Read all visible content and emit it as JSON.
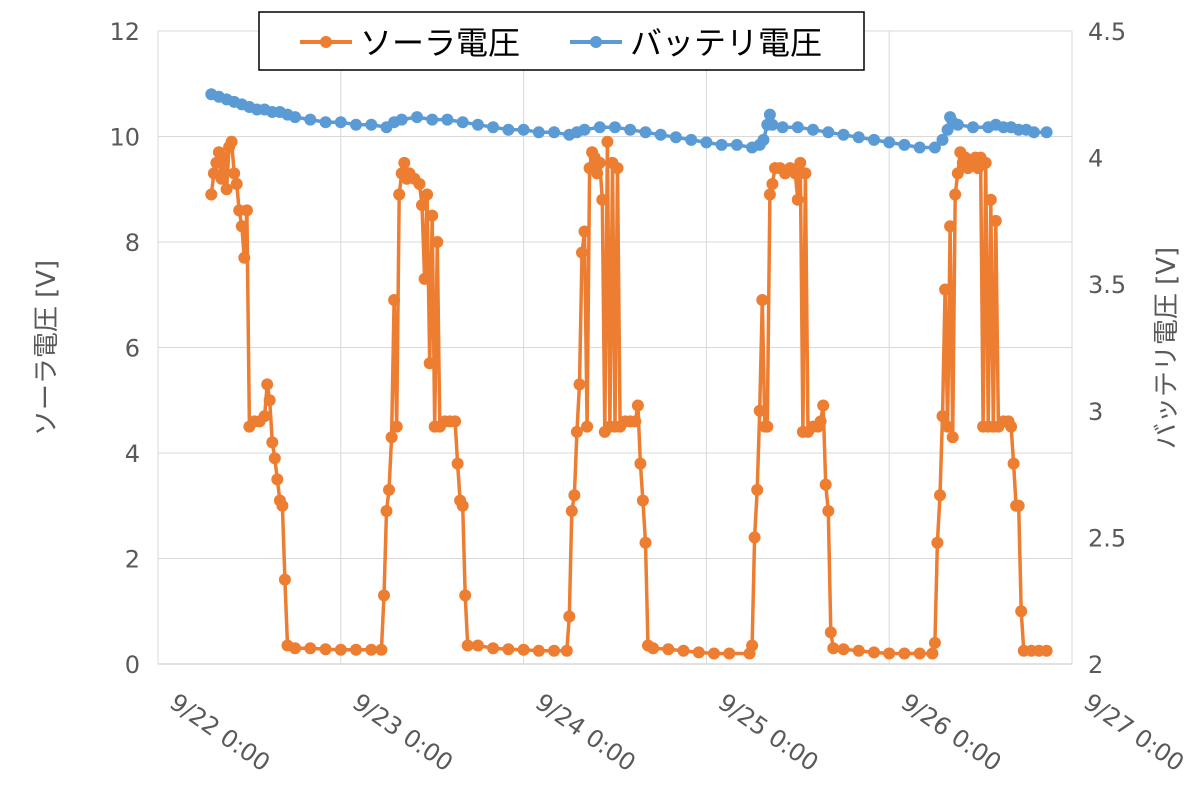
{
  "chart_data": {
    "type": "line",
    "legend": {
      "placement": "top",
      "entries": [
        {
          "label": "ソーラ電圧",
          "color": "#ED7D31"
        },
        {
          "label": "バッテリ電圧",
          "color": "#5B9BD5"
        }
      ]
    },
    "x_axis": {
      "ticks": [
        "9/22 0:00",
        "9/23 0:00",
        "9/24 0:00",
        "9/25 0:00",
        "9/26 0:00",
        "9/27 0:00"
      ],
      "range": [
        "9/22 0:00",
        "9/27 0:00"
      ],
      "unit": "day"
    },
    "y_left": {
      "label": "ソーラ電圧 [V]",
      "ticks": [
        "0",
        "2",
        "4",
        "6",
        "8",
        "10",
        "12"
      ],
      "range": [
        0,
        12
      ]
    },
    "y_right": {
      "label": "バッテリ電圧 [V]",
      "ticks": [
        "2",
        "2.5",
        "3",
        "3.5",
        "4",
        "4.5"
      ],
      "range": [
        2,
        4.5
      ]
    },
    "grid": "horizontal",
    "series": [
      {
        "name": "ソーラ電圧",
        "axis": "left",
        "color": "#ED7D31",
        "points": [
          [
            "9/22 7:00",
            8.9
          ],
          [
            "9/22 7:20",
            9.3
          ],
          [
            "9/22 7:40",
            9.5
          ],
          [
            "9/22 8:00",
            9.7
          ],
          [
            "9/22 8:20",
            9.2
          ],
          [
            "9/22 8:40",
            9.6
          ],
          [
            "9/22 9:00",
            9.0
          ],
          [
            "9/22 9:20",
            9.8
          ],
          [
            "9/22 9:40",
            9.9
          ],
          [
            "9/22 10:00",
            9.3
          ],
          [
            "9/22 10:20",
            9.1
          ],
          [
            "9/22 10:40",
            8.6
          ],
          [
            "9/22 11:00",
            8.3
          ],
          [
            "9/22 11:20",
            7.7
          ],
          [
            "9/22 11:40",
            8.6
          ],
          [
            "9/22 12:00",
            4.5
          ],
          [
            "9/22 12:40",
            4.6
          ],
          [
            "9/22 13:20",
            4.6
          ],
          [
            "9/22 14:00",
            4.7
          ],
          [
            "9/22 14:20",
            5.3
          ],
          [
            "9/22 14:40",
            5.0
          ],
          [
            "9/22 15:00",
            4.2
          ],
          [
            "9/22 15:20",
            3.9
          ],
          [
            "9/22 15:40",
            3.5
          ],
          [
            "9/22 16:00",
            3.1
          ],
          [
            "9/22 16:20",
            3.0
          ],
          [
            "9/22 16:40",
            1.6
          ],
          [
            "9/22 17:00",
            0.35
          ],
          [
            "9/22 18:00",
            0.3
          ],
          [
            "9/22 20:00",
            0.3
          ],
          [
            "9/22 22:00",
            0.28
          ],
          [
            "9/23 0:00",
            0.27
          ],
          [
            "9/23 2:00",
            0.27
          ],
          [
            "9/23 4:00",
            0.27
          ],
          [
            "9/23 5:20",
            0.27
          ],
          [
            "9/23 5:40",
            1.3
          ],
          [
            "9/23 6:00",
            2.9
          ],
          [
            "9/23 6:20",
            3.3
          ],
          [
            "9/23 6:40",
            4.3
          ],
          [
            "9/23 7:00",
            6.9
          ],
          [
            "9/23 7:20",
            4.5
          ],
          [
            "9/23 7:40",
            8.9
          ],
          [
            "9/23 8:00",
            9.3
          ],
          [
            "9/23 8:20",
            9.5
          ],
          [
            "9/23 8:40",
            9.2
          ],
          [
            "9/23 9:00",
            9.3
          ],
          [
            "9/23 9:40",
            9.2
          ],
          [
            "9/23 10:20",
            9.1
          ],
          [
            "9/23 10:40",
            8.7
          ],
          [
            "9/23 11:00",
            7.3
          ],
          [
            "9/23 11:20",
            8.9
          ],
          [
            "9/23 11:40",
            5.7
          ],
          [
            "9/23 12:00",
            8.5
          ],
          [
            "9/23 12:20",
            4.5
          ],
          [
            "9/23 12:40",
            8.0
          ],
          [
            "9/23 13:00",
            4.5
          ],
          [
            "9/23 13:40",
            4.6
          ],
          [
            "9/23 14:20",
            4.6
          ],
          [
            "9/23 15:00",
            4.6
          ],
          [
            "9/23 15:20",
            3.8
          ],
          [
            "9/23 15:40",
            3.1
          ],
          [
            "9/23 16:00",
            3.0
          ],
          [
            "9/23 16:20",
            1.3
          ],
          [
            "9/23 16:40",
            0.35
          ],
          [
            "9/23 18:00",
            0.35
          ],
          [
            "9/23 20:00",
            0.3
          ],
          [
            "9/23 22:00",
            0.28
          ],
          [
            "9/24 0:00",
            0.27
          ],
          [
            "9/24 2:00",
            0.25
          ],
          [
            "9/24 4:00",
            0.25
          ],
          [
            "9/24 5:40",
            0.25
          ],
          [
            "9/24 6:00",
            0.9
          ],
          [
            "9/24 6:20",
            2.9
          ],
          [
            "9/24 6:40",
            3.2
          ],
          [
            "9/24 7:00",
            4.4
          ],
          [
            "9/24 7:20",
            5.3
          ],
          [
            "9/24 7:40",
            7.8
          ],
          [
            "9/24 8:00",
            8.2
          ],
          [
            "9/24 8:20",
            4.5
          ],
          [
            "9/24 8:40",
            9.4
          ],
          [
            "9/24 9:00",
            9.7
          ],
          [
            "9/24 9:20",
            9.6
          ],
          [
            "9/24 9:40",
            9.3
          ],
          [
            "9/24 10:00",
            9.5
          ],
          [
            "9/24 10:20",
            8.8
          ],
          [
            "9/24 10:40",
            4.4
          ],
          [
            "9/24 11:00",
            9.9
          ],
          [
            "9/24 11:20",
            4.5
          ],
          [
            "9/24 11:40",
            9.5
          ],
          [
            "9/24 12:00",
            4.5
          ],
          [
            "9/24 12:20",
            9.4
          ],
          [
            "9/24 12:40",
            4.5
          ],
          [
            "9/24 13:20",
            4.6
          ],
          [
            "9/24 14:00",
            4.6
          ],
          [
            "9/24 14:40",
            4.6
          ],
          [
            "9/24 15:00",
            4.9
          ],
          [
            "9/24 15:20",
            3.8
          ],
          [
            "9/24 15:40",
            3.1
          ],
          [
            "9/24 16:00",
            2.3
          ],
          [
            "9/24 16:20",
            0.35
          ],
          [
            "9/24 17:00",
            0.3
          ],
          [
            "9/24 19:00",
            0.28
          ],
          [
            "9/24 21:00",
            0.25
          ],
          [
            "9/24 23:00",
            0.22
          ],
          [
            "9/25 1:00",
            0.2
          ],
          [
            "9/25 3:00",
            0.2
          ],
          [
            "9/25 5:40",
            0.2
          ],
          [
            "9/25 6:00",
            0.35
          ],
          [
            "9/25 6:20",
            2.4
          ],
          [
            "9/25 6:40",
            3.3
          ],
          [
            "9/25 7:00",
            4.8
          ],
          [
            "9/25 7:20",
            6.9
          ],
          [
            "9/25 7:40",
            4.5
          ],
          [
            "9/25 8:00",
            4.5
          ],
          [
            "9/25 8:20",
            8.9
          ],
          [
            "9/25 8:40",
            9.1
          ],
          [
            "9/25 9:00",
            9.4
          ],
          [
            "9/25 9:40",
            9.4
          ],
          [
            "9/25 10:20",
            9.3
          ],
          [
            "9/25 11:00",
            9.4
          ],
          [
            "9/25 11:40",
            9.3
          ],
          [
            "9/25 12:00",
            8.8
          ],
          [
            "9/25 12:20",
            9.5
          ],
          [
            "9/25 12:40",
            4.4
          ],
          [
            "9/25 13:00",
            9.3
          ],
          [
            "9/25 13:20",
            4.4
          ],
          [
            "9/25 14:00",
            4.5
          ],
          [
            "9/25 14:40",
            4.5
          ],
          [
            "9/25 15:00",
            4.6
          ],
          [
            "9/25 15:20",
            4.9
          ],
          [
            "9/25 15:40",
            3.4
          ],
          [
            "9/25 16:00",
            2.9
          ],
          [
            "9/25 16:20",
            0.6
          ],
          [
            "9/25 16:40",
            0.3
          ],
          [
            "9/25 18:00",
            0.28
          ],
          [
            "9/25 20:00",
            0.25
          ],
          [
            "9/25 22:00",
            0.22
          ],
          [
            "9/26 0:00",
            0.2
          ],
          [
            "9/26 2:00",
            0.2
          ],
          [
            "9/26 4:00",
            0.2
          ],
          [
            "9/26 5:40",
            0.2
          ],
          [
            "9/26 6:00",
            0.4
          ],
          [
            "9/26 6:20",
            2.3
          ],
          [
            "9/26 6:40",
            3.2
          ],
          [
            "9/26 7:00",
            4.7
          ],
          [
            "9/26 7:20",
            7.1
          ],
          [
            "9/26 7:40",
            4.5
          ],
          [
            "9/26 8:00",
            8.3
          ],
          [
            "9/26 8:20",
            4.3
          ],
          [
            "9/26 8:40",
            8.9
          ],
          [
            "9/26 9:00",
            9.3
          ],
          [
            "9/26 9:20",
            9.7
          ],
          [
            "9/26 9:40",
            9.5
          ],
          [
            "9/26 10:00",
            9.6
          ],
          [
            "9/26 10:20",
            9.4
          ],
          [
            "9/26 10:40",
            9.5
          ],
          [
            "9/26 11:00",
            9.5
          ],
          [
            "9/26 11:20",
            9.6
          ],
          [
            "9/26 11:40",
            9.4
          ],
          [
            "9/26 12:00",
            9.6
          ],
          [
            "9/26 12:20",
            4.5
          ],
          [
            "9/26 12:40",
            9.5
          ],
          [
            "9/26 13:00",
            4.5
          ],
          [
            "9/26 13:20",
            8.8
          ],
          [
            "9/26 13:40",
            4.5
          ],
          [
            "9/26 14:00",
            8.4
          ],
          [
            "9/26 14:20",
            4.5
          ],
          [
            "9/26 15:00",
            4.6
          ],
          [
            "9/26 15:40",
            4.6
          ],
          [
            "9/26 16:00",
            4.5
          ],
          [
            "9/26 16:20",
            3.8
          ],
          [
            "9/26 16:40",
            3.0
          ],
          [
            "9/26 17:00",
            3.0
          ],
          [
            "9/26 17:20",
            1.0
          ],
          [
            "9/26 17:40",
            0.25
          ],
          [
            "9/26 18:40",
            0.25
          ],
          [
            "9/26 19:40",
            0.25
          ],
          [
            "9/26 20:40",
            0.25
          ]
        ]
      },
      {
        "name": "バッテリ電圧",
        "axis": "right",
        "color": "#5B9BD5",
        "points": [
          [
            "9/22 7:00",
            4.25
          ],
          [
            "9/22 8:00",
            4.24
          ],
          [
            "9/22 9:00",
            4.23
          ],
          [
            "9/22 10:00",
            4.22
          ],
          [
            "9/22 11:00",
            4.21
          ],
          [
            "9/22 12:00",
            4.2
          ],
          [
            "9/22 13:00",
            4.19
          ],
          [
            "9/22 14:00",
            4.19
          ],
          [
            "9/22 15:00",
            4.18
          ],
          [
            "9/22 16:00",
            4.18
          ],
          [
            "9/22 17:00",
            4.17
          ],
          [
            "9/22 18:00",
            4.16
          ],
          [
            "9/22 20:00",
            4.15
          ],
          [
            "9/22 22:00",
            4.14
          ],
          [
            "9/23 0:00",
            4.14
          ],
          [
            "9/23 2:00",
            4.13
          ],
          [
            "9/23 4:00",
            4.13
          ],
          [
            "9/23 6:00",
            4.12
          ],
          [
            "9/23 7:00",
            4.14
          ],
          [
            "9/23 8:00",
            4.15
          ],
          [
            "9/23 10:00",
            4.16
          ],
          [
            "9/23 12:00",
            4.15
          ],
          [
            "9/23 14:00",
            4.15
          ],
          [
            "9/23 16:00",
            4.14
          ],
          [
            "9/23 18:00",
            4.13
          ],
          [
            "9/23 20:00",
            4.12
          ],
          [
            "9/23 22:00",
            4.11
          ],
          [
            "9/24 0:00",
            4.11
          ],
          [
            "9/24 2:00",
            4.1
          ],
          [
            "9/24 4:00",
            4.1
          ],
          [
            "9/24 6:00",
            4.09
          ],
          [
            "9/24 7:00",
            4.1
          ],
          [
            "9/24 8:00",
            4.11
          ],
          [
            "9/24 10:00",
            4.12
          ],
          [
            "9/24 12:00",
            4.12
          ],
          [
            "9/24 14:00",
            4.11
          ],
          [
            "9/24 16:00",
            4.1
          ],
          [
            "9/24 18:00",
            4.09
          ],
          [
            "9/24 20:00",
            4.08
          ],
          [
            "9/24 22:00",
            4.07
          ],
          [
            "9/25 0:00",
            4.06
          ],
          [
            "9/25 2:00",
            4.05
          ],
          [
            "9/25 4:00",
            4.05
          ],
          [
            "9/25 6:00",
            4.04
          ],
          [
            "9/25 7:00",
            4.05
          ],
          [
            "9/25 7:30",
            4.07
          ],
          [
            "9/25 8:00",
            4.13
          ],
          [
            "9/25 8:20",
            4.17
          ],
          [
            "9/25 8:40",
            4.13
          ],
          [
            "9/25 10:00",
            4.12
          ],
          [
            "9/25 12:00",
            4.12
          ],
          [
            "9/25 14:00",
            4.11
          ],
          [
            "9/25 16:00",
            4.1
          ],
          [
            "9/25 18:00",
            4.09
          ],
          [
            "9/25 20:00",
            4.08
          ],
          [
            "9/25 22:00",
            4.07
          ],
          [
            "9/26 0:00",
            4.06
          ],
          [
            "9/26 2:00",
            4.05
          ],
          [
            "9/26 4:00",
            4.04
          ],
          [
            "9/26 6:00",
            4.04
          ],
          [
            "9/26 7:00",
            4.07
          ],
          [
            "9/26 7:40",
            4.11
          ],
          [
            "9/26 8:00",
            4.16
          ],
          [
            "9/26 8:20",
            4.14
          ],
          [
            "9/26 9:00",
            4.13
          ],
          [
            "9/26 11:00",
            4.12
          ],
          [
            "9/26 13:00",
            4.12
          ],
          [
            "9/26 14:00",
            4.13
          ],
          [
            "9/26 15:00",
            4.12
          ],
          [
            "9/26 16:00",
            4.12
          ],
          [
            "9/26 17:00",
            4.11
          ],
          [
            "9/26 18:00",
            4.11
          ],
          [
            "9/26 19:00",
            4.1
          ],
          [
            "9/26 20:40",
            4.1
          ]
        ]
      }
    ]
  }
}
